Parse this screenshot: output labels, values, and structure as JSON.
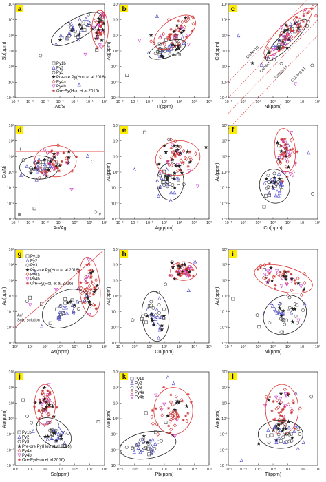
{
  "colors": {
    "Py1b": "#444444",
    "Py2": "#4444cc",
    "Py3": "#333333",
    "PreOre": "#222222",
    "Py4a": "#cc3333",
    "Py4b": "#cc33cc",
    "OrePy": "#cc3333",
    "label_bg": "#ffee00",
    "ellipse_black": "#222222",
    "ellipse_red": "#dd3333"
  },
  "legend_sets": {
    "full": [
      {
        "name": "Py1b",
        "marker": "square"
      },
      {
        "name": "Py2",
        "marker": "triangle"
      },
      {
        "name": "Py3",
        "marker": "circle"
      },
      {
        "name": "Pre-ore Py(Hou et al.2016)",
        "marker": "star"
      },
      {
        "name": "Py4a",
        "marker": "diamond"
      },
      {
        "name": "Py4b",
        "marker": "tri-down"
      },
      {
        "name": "Ore-Py(Hou et al.2016)",
        "marker": "asterisk"
      }
    ],
    "short": [
      {
        "name": "Py1b",
        "marker": "square"
      },
      {
        "name": "Py2",
        "marker": "triangle"
      },
      {
        "name": "Py3",
        "marker": "circle"
      },
      {
        "name": "Py4a",
        "marker": "diamond"
      },
      {
        "name": "Py4b",
        "marker": "tri-down"
      }
    ]
  },
  "chart_data": [
    {
      "panel": "a",
      "type": "scatter",
      "xlabel": "As/S",
      "ylabel": "Sb(ppm)",
      "xlim_exp": [
        -6,
        0
      ],
      "ylim_exp": [
        -1,
        5
      ],
      "log": true,
      "legend": "full",
      "legend_placement": "bottom-center"
    },
    {
      "panel": "b",
      "type": "scatter",
      "xlabel": "Tl(ppm)",
      "ylabel": "Ag(ppm)",
      "xlim_exp": [
        -3,
        3
      ],
      "ylim_exp": [
        -3,
        3
      ],
      "log": true,
      "annotations": [
        "Ag-Tl"
      ]
    },
    {
      "panel": "c",
      "type": "scatter",
      "xlabel": "Ni(ppm)",
      "ylabel": "Co(ppm)",
      "xlim_exp": [
        -1,
        5
      ],
      "ylim_exp": [
        -1,
        5
      ],
      "log": true,
      "annotations": [
        "Co/Ni=1",
        "Co/Ni=10",
        "Co/Ni=0.1",
        "Co/Ni=0.01"
      ]
    },
    {
      "panel": "d",
      "type": "scatter",
      "xlabel": "Au/Ag",
      "ylabel": "Co/Ni",
      "xlim_exp": [
        -4,
        2
      ],
      "ylim_exp": [
        -3,
        3
      ],
      "log": true,
      "annotations": [
        "I",
        "II",
        "III",
        "IV"
      ]
    },
    {
      "panel": "e",
      "type": "scatter",
      "xlabel": "Ag(ppm)",
      "ylabel": "Au(ppm)",
      "xlim_exp": [
        -3,
        3
      ],
      "ylim_exp": [
        -3,
        3
      ],
      "log": true
    },
    {
      "panel": "f",
      "type": "scatter",
      "xlabel": "Cu(ppm)",
      "ylabel": "Au(ppm)",
      "xlim_exp": [
        -1,
        5
      ],
      "ylim_exp": [
        -3,
        3
      ],
      "log": true
    },
    {
      "panel": "g",
      "type": "scatter",
      "xlabel": "As(ppm)",
      "ylabel": "Au(ppm)",
      "xlim_exp": [
        0,
        6
      ],
      "ylim_exp": [
        -3,
        3
      ],
      "log": true,
      "legend": "full",
      "legend_placement": "top-left",
      "annotations": [
        "Au⁰",
        "Solid solution"
      ]
    },
    {
      "panel": "h",
      "type": "scatter",
      "xlabel": "Cu(ppm)",
      "ylabel": "Au(ppm)",
      "xlim_exp": [
        -1,
        5
      ],
      "ylim_exp": [
        -3,
        3
      ],
      "log": true
    },
    {
      "panel": "i",
      "type": "scatter",
      "xlabel": "Ni(ppm)",
      "ylabel": "Au(ppm)",
      "xlim_exp": [
        -1,
        5
      ],
      "ylim_exp": [
        -3,
        3
      ],
      "log": true
    },
    {
      "panel": "j",
      "type": "scatter",
      "xlabel": "Se(ppm)",
      "ylabel": "Au(ppm)",
      "xlim_exp": [
        0,
        6
      ],
      "ylim_exp": [
        -3,
        3
      ],
      "log": true,
      "legend": "full",
      "legend_placement": "bottom-left"
    },
    {
      "panel": "k",
      "type": "scatter",
      "xlabel": "Pb(ppm)",
      "ylabel": "Au(ppm)",
      "xlim_exp": [
        -1,
        5
      ],
      "ylim_exp": [
        -3,
        3
      ],
      "log": true,
      "legend": "short",
      "legend_placement": "top-left"
    },
    {
      "panel": "l",
      "type": "scatter",
      "xlabel": "Tl(ppm)",
      "ylabel": "Au(ppm)",
      "xlim_exp": [
        -3,
        3
      ],
      "ylim_exp": [
        -3,
        3
      ],
      "log": true
    }
  ]
}
